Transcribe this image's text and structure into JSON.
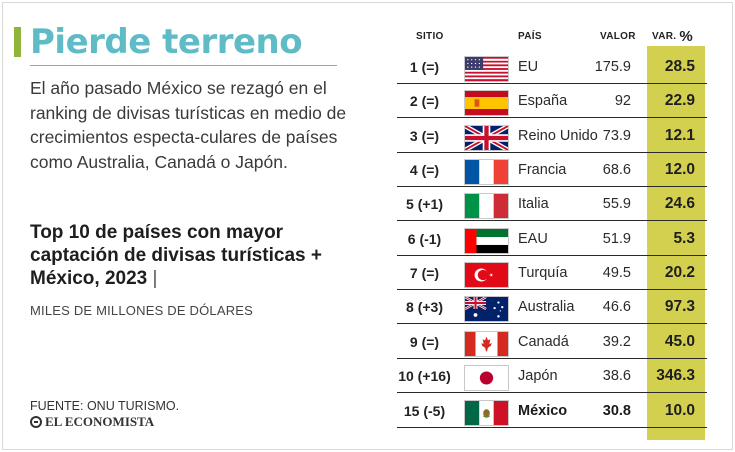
{
  "title": "Pierde terreno",
  "intro": "El año pasado México se rezagó en el ranking de divisas turísticas en medio de crecimientos especta-culares de países como Australia, Canadá o Japón.",
  "subtitle": "Top 10 de países con mayor captación de divisas turísticas + México, 2023",
  "subtitle_sep": "|",
  "units": "MILES DE MILLONES DE DÓLARES",
  "source": "FUENTE: ONU TURISMO.",
  "logo": "EL ECONOMISTA",
  "colors": {
    "accent": "#5fbcc7",
    "title_bar": "#8fb63a",
    "var_col": "#d4d04f"
  },
  "chart_data": {
    "type": "table",
    "columns": {
      "rank": "SITIO",
      "country": "PAÍS",
      "value": "VALOR",
      "var": "VAR.",
      "var_unit": "%"
    },
    "rows": [
      {
        "rank": "1 (=)",
        "country": "EU",
        "flag": "us-flag-icon",
        "value": "175.9",
        "var": "28.5"
      },
      {
        "rank": "2 (=)",
        "country": "España",
        "flag": "spain-flag-icon",
        "value": "92",
        "var": "22.9"
      },
      {
        "rank": "3 (=)",
        "country": "Reino Unido",
        "flag": "uk-flag-icon",
        "value": "73.9",
        "var": "12.1"
      },
      {
        "rank": "4 (=)",
        "country": "Francia",
        "flag": "france-flag-icon",
        "value": "68.6",
        "var": "12.0"
      },
      {
        "rank": "5 (+1)",
        "country": "Italia",
        "flag": "italy-flag-icon",
        "value": "55.9",
        "var": "24.6"
      },
      {
        "rank": "6 (-1)",
        "country": "EAU",
        "flag": "uae-flag-icon",
        "value": "51.9",
        "var": "5.3"
      },
      {
        "rank": "7 (=)",
        "country": "Turquía",
        "flag": "turkey-flag-icon",
        "value": "49.5",
        "var": "20.2"
      },
      {
        "rank": "8 (+3)",
        "country": "Australia",
        "flag": "australia-flag-icon",
        "value": "46.6",
        "var": "97.3"
      },
      {
        "rank": "9 (=)",
        "country": "Canadá",
        "flag": "canada-flag-icon",
        "value": "39.2",
        "var": "45.0"
      },
      {
        "rank": "10 (+16)",
        "country": "Japón",
        "flag": "japan-flag-icon",
        "value": "38.6",
        "var": "346.3"
      },
      {
        "rank": "15 (-5)",
        "country": "México",
        "flag": "mexico-flag-icon",
        "value": "30.8",
        "var": "10.0",
        "highlight": true
      }
    ]
  }
}
